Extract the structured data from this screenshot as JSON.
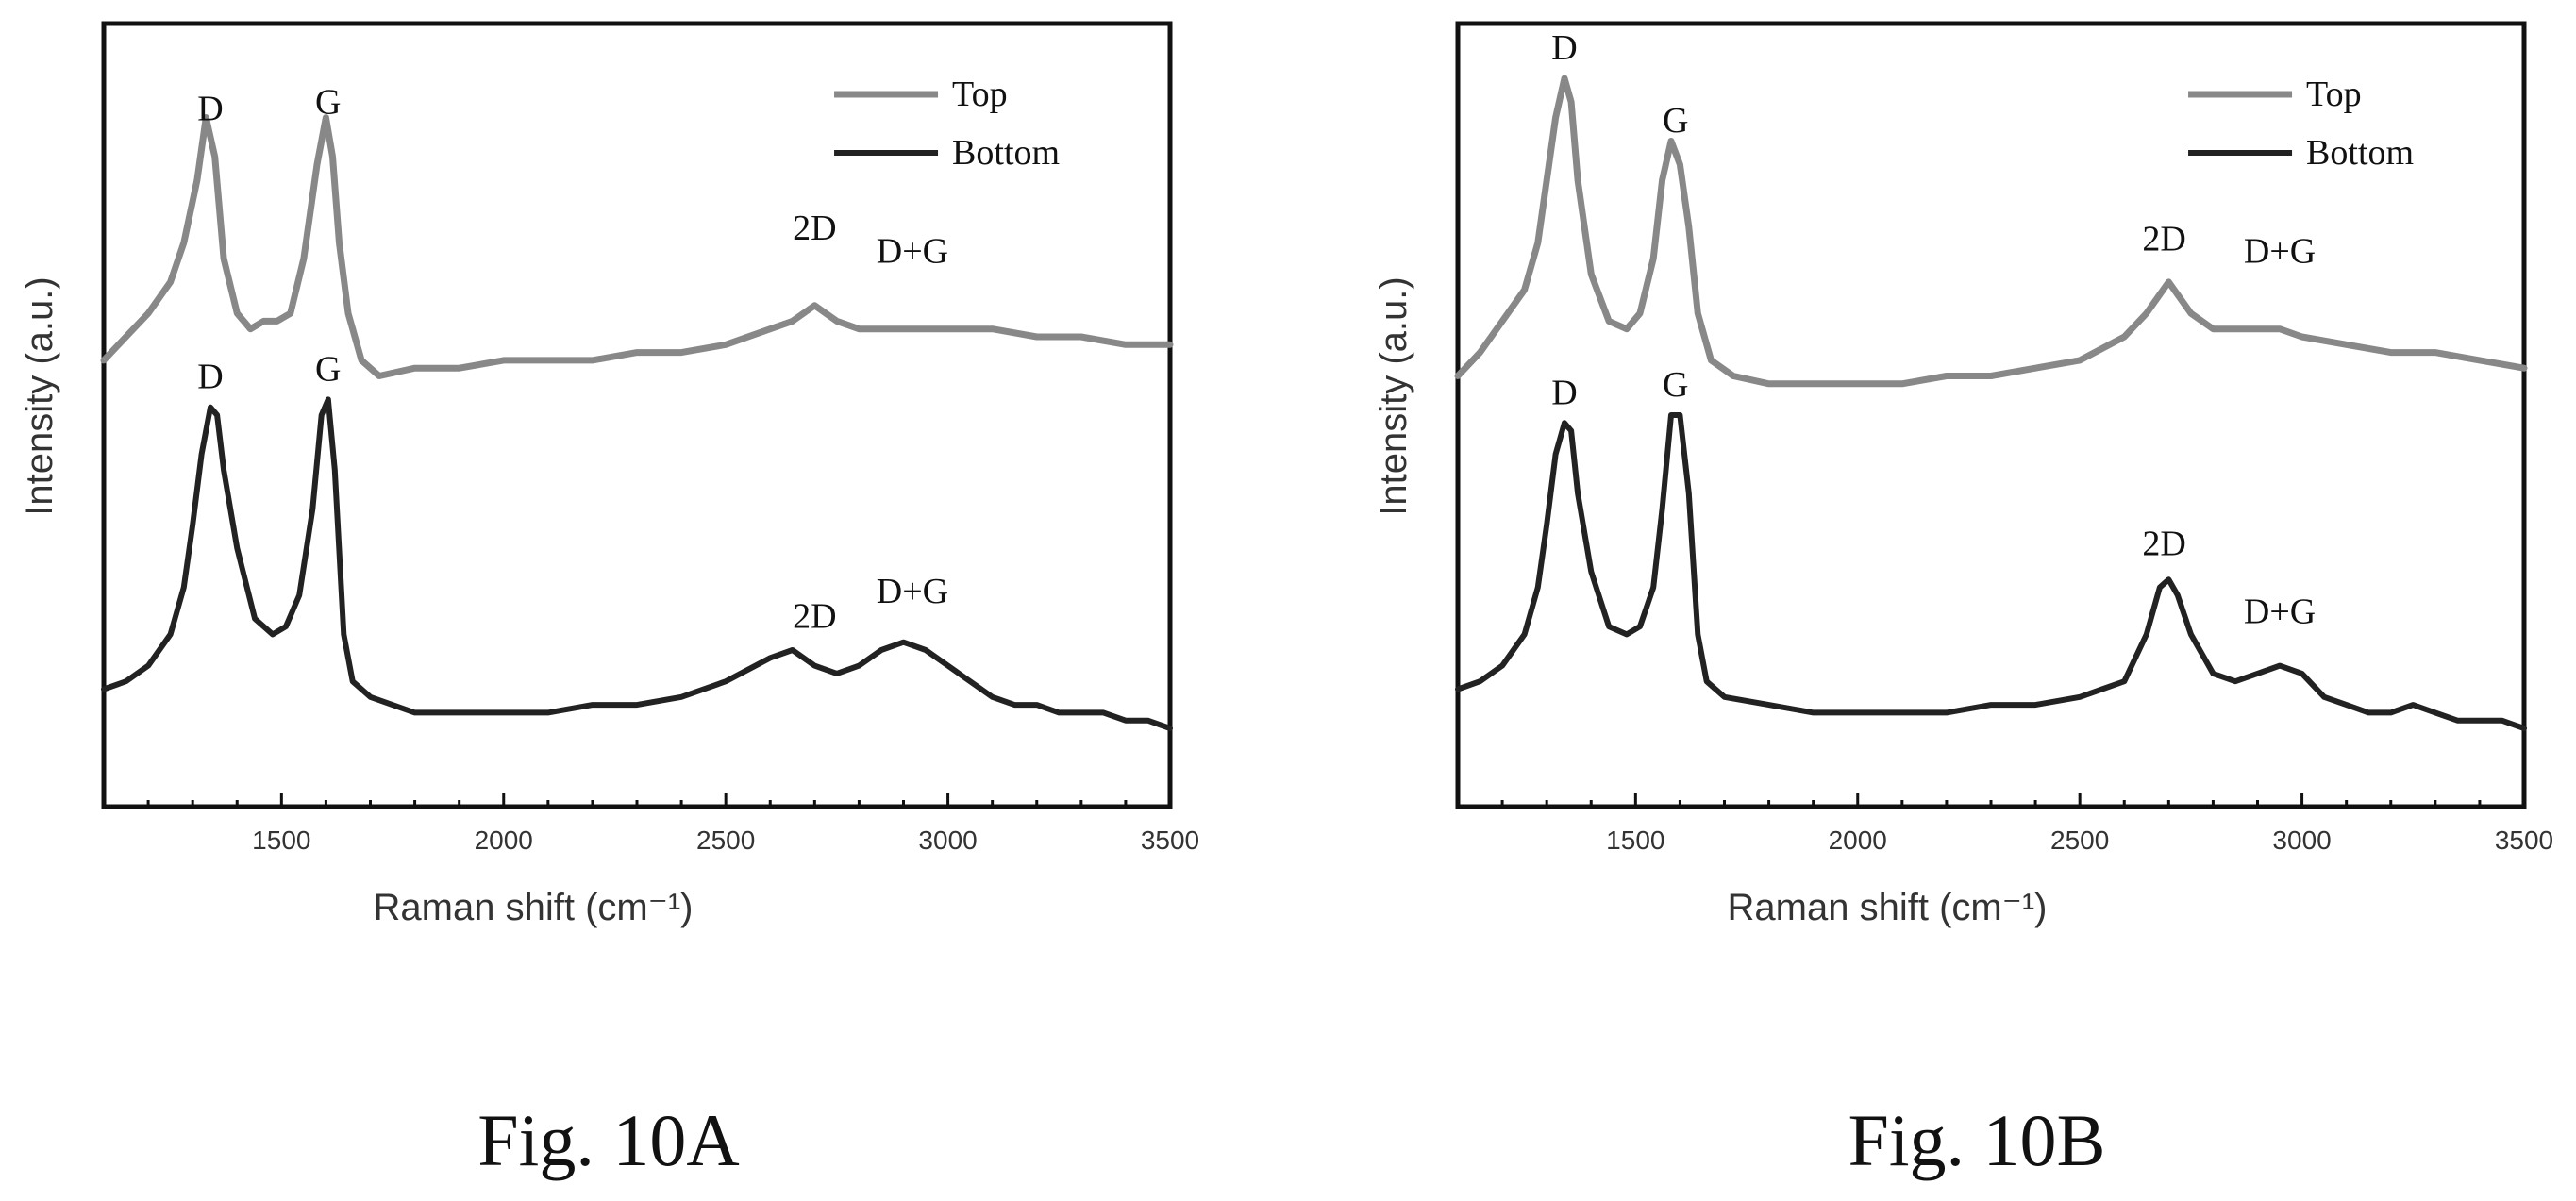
{
  "chart_data": [
    {
      "type": "line",
      "caption": "Fig. 10A",
      "xlabel": "Raman shift (cm⁻¹)",
      "ylabel": "Intensity (a.u.)",
      "xlim": [
        1100,
        3500
      ],
      "ylim": [
        0,
        100
      ],
      "xticks": [
        1500,
        2000,
        2500,
        3000,
        3500
      ],
      "y_tick_labels": false,
      "grid": false,
      "legend": {
        "position": "top-right",
        "entries": [
          "Top",
          "Bottom"
        ]
      },
      "series": [
        {
          "name": "Top",
          "color": "#888888",
          "x": [
            1100,
            1150,
            1200,
            1250,
            1280,
            1310,
            1330,
            1350,
            1370,
            1400,
            1430,
            1460,
            1490,
            1520,
            1550,
            1580,
            1600,
            1615,
            1630,
            1650,
            1680,
            1720,
            1800,
            1900,
            2000,
            2100,
            2200,
            2300,
            2400,
            2500,
            2600,
            2650,
            2700,
            2750,
            2800,
            2900,
            3000,
            3100,
            3200,
            3300,
            3400,
            3500
          ],
          "y": [
            57,
            60,
            63,
            67,
            72,
            80,
            88,
            83,
            70,
            63,
            61,
            62,
            62,
            63,
            70,
            82,
            88,
            83,
            72,
            63,
            57,
            55,
            56,
            56,
            57,
            57,
            57,
            58,
            58,
            59,
            61,
            62,
            64,
            62,
            61,
            61,
            61,
            61,
            60,
            60,
            59,
            59
          ]
        },
        {
          "name": "Bottom",
          "color": "#222222",
          "x": [
            1100,
            1150,
            1200,
            1250,
            1280,
            1300,
            1320,
            1340,
            1355,
            1370,
            1400,
            1440,
            1480,
            1510,
            1540,
            1570,
            1590,
            1605,
            1620,
            1640,
            1660,
            1700,
            1800,
            1900,
            2000,
            2100,
            2200,
            2300,
            2400,
            2500,
            2600,
            2650,
            2700,
            2750,
            2800,
            2850,
            2900,
            2950,
            3000,
            3050,
            3100,
            3150,
            3200,
            3250,
            3300,
            3350,
            3400,
            3450,
            3500
          ],
          "y": [
            15,
            16,
            18,
            22,
            28,
            36,
            45,
            51,
            50,
            43,
            33,
            24,
            22,
            23,
            27,
            38,
            50,
            52,
            43,
            22,
            16,
            14,
            12,
            12,
            12,
            12,
            13,
            13,
            14,
            16,
            19,
            20,
            18,
            17,
            18,
            20,
            21,
            20,
            18,
            16,
            14,
            13,
            13,
            12,
            12,
            12,
            11,
            11,
            10
          ]
        }
      ],
      "annotations": [
        {
          "text": "D",
          "series": "Top",
          "x": 1340
        },
        {
          "text": "G",
          "series": "Top",
          "x": 1605
        },
        {
          "text": "2D",
          "series": "Top",
          "x": 2700
        },
        {
          "text": "D+G",
          "series": "Top",
          "x": 2920
        },
        {
          "text": "D",
          "series": "Bottom",
          "x": 1340
        },
        {
          "text": "G",
          "series": "Bottom",
          "x": 1605
        },
        {
          "text": "2D",
          "series": "Bottom",
          "x": 2700
        },
        {
          "text": "D+G",
          "series": "Bottom",
          "x": 2920
        }
      ]
    },
    {
      "type": "line",
      "caption": "Fig. 10B",
      "xlabel": "Raman shift (cm⁻¹)",
      "ylabel": "Intensity (a.u.)",
      "xlim": [
        1100,
        3500
      ],
      "ylim": [
        0,
        100
      ],
      "xticks": [
        1500,
        2000,
        2500,
        3000,
        3500
      ],
      "y_tick_labels": false,
      "grid": false,
      "legend": {
        "position": "top-right",
        "entries": [
          "Top",
          "Bottom"
        ]
      },
      "series": [
        {
          "name": "Top",
          "color": "#888888",
          "x": [
            1100,
            1150,
            1200,
            1250,
            1280,
            1300,
            1320,
            1340,
            1355,
            1370,
            1400,
            1440,
            1480,
            1510,
            1540,
            1560,
            1580,
            1600,
            1620,
            1640,
            1670,
            1720,
            1800,
            1900,
            2000,
            2100,
            2200,
            2300,
            2400,
            2500,
            2600,
            2650,
            2700,
            2750,
            2800,
            2850,
            2900,
            2950,
            3000,
            3100,
            3200,
            3300,
            3400,
            3500
          ],
          "y": [
            55,
            58,
            62,
            66,
            72,
            80,
            88,
            93,
            90,
            80,
            68,
            62,
            61,
            63,
            70,
            80,
            85,
            82,
            74,
            63,
            57,
            55,
            54,
            54,
            54,
            54,
            55,
            55,
            56,
            57,
            60,
            63,
            67,
            63,
            61,
            61,
            61,
            61,
            60,
            59,
            58,
            58,
            57,
            56
          ]
        },
        {
          "name": "Bottom",
          "color": "#222222",
          "x": [
            1100,
            1150,
            1200,
            1250,
            1280,
            1300,
            1320,
            1340,
            1355,
            1370,
            1400,
            1440,
            1480,
            1510,
            1540,
            1560,
            1580,
            1600,
            1620,
            1640,
            1660,
            1700,
            1800,
            1900,
            2000,
            2100,
            2200,
            2300,
            2400,
            2500,
            2550,
            2600,
            2650,
            2680,
            2700,
            2720,
            2750,
            2800,
            2850,
            2900,
            2950,
            3000,
            3050,
            3100,
            3150,
            3200,
            3250,
            3300,
            3350,
            3400,
            3450,
            3500
          ],
          "y": [
            15,
            16,
            18,
            22,
            28,
            36,
            45,
            49,
            48,
            40,
            30,
            23,
            22,
            23,
            28,
            38,
            50,
            50,
            40,
            22,
            16,
            14,
            13,
            12,
            12,
            12,
            12,
            13,
            13,
            14,
            15,
            16,
            22,
            28,
            29,
            27,
            22,
            17,
            16,
            17,
            18,
            17,
            14,
            13,
            12,
            12,
            13,
            12,
            11,
            11,
            11,
            10
          ]
        }
      ],
      "annotations": [
        {
          "text": "D",
          "series": "Top",
          "x": 1340
        },
        {
          "text": "G",
          "series": "Top",
          "x": 1590
        },
        {
          "text": "2D",
          "series": "Top",
          "x": 2690
        },
        {
          "text": "D+G",
          "series": "Top",
          "x": 2950
        },
        {
          "text": "D",
          "series": "Bottom",
          "x": 1340
        },
        {
          "text": "G",
          "series": "Bottom",
          "x": 1590
        },
        {
          "text": "2D",
          "series": "Bottom",
          "x": 2690
        },
        {
          "text": "D+G",
          "series": "Bottom",
          "x": 2950
        }
      ]
    }
  ]
}
